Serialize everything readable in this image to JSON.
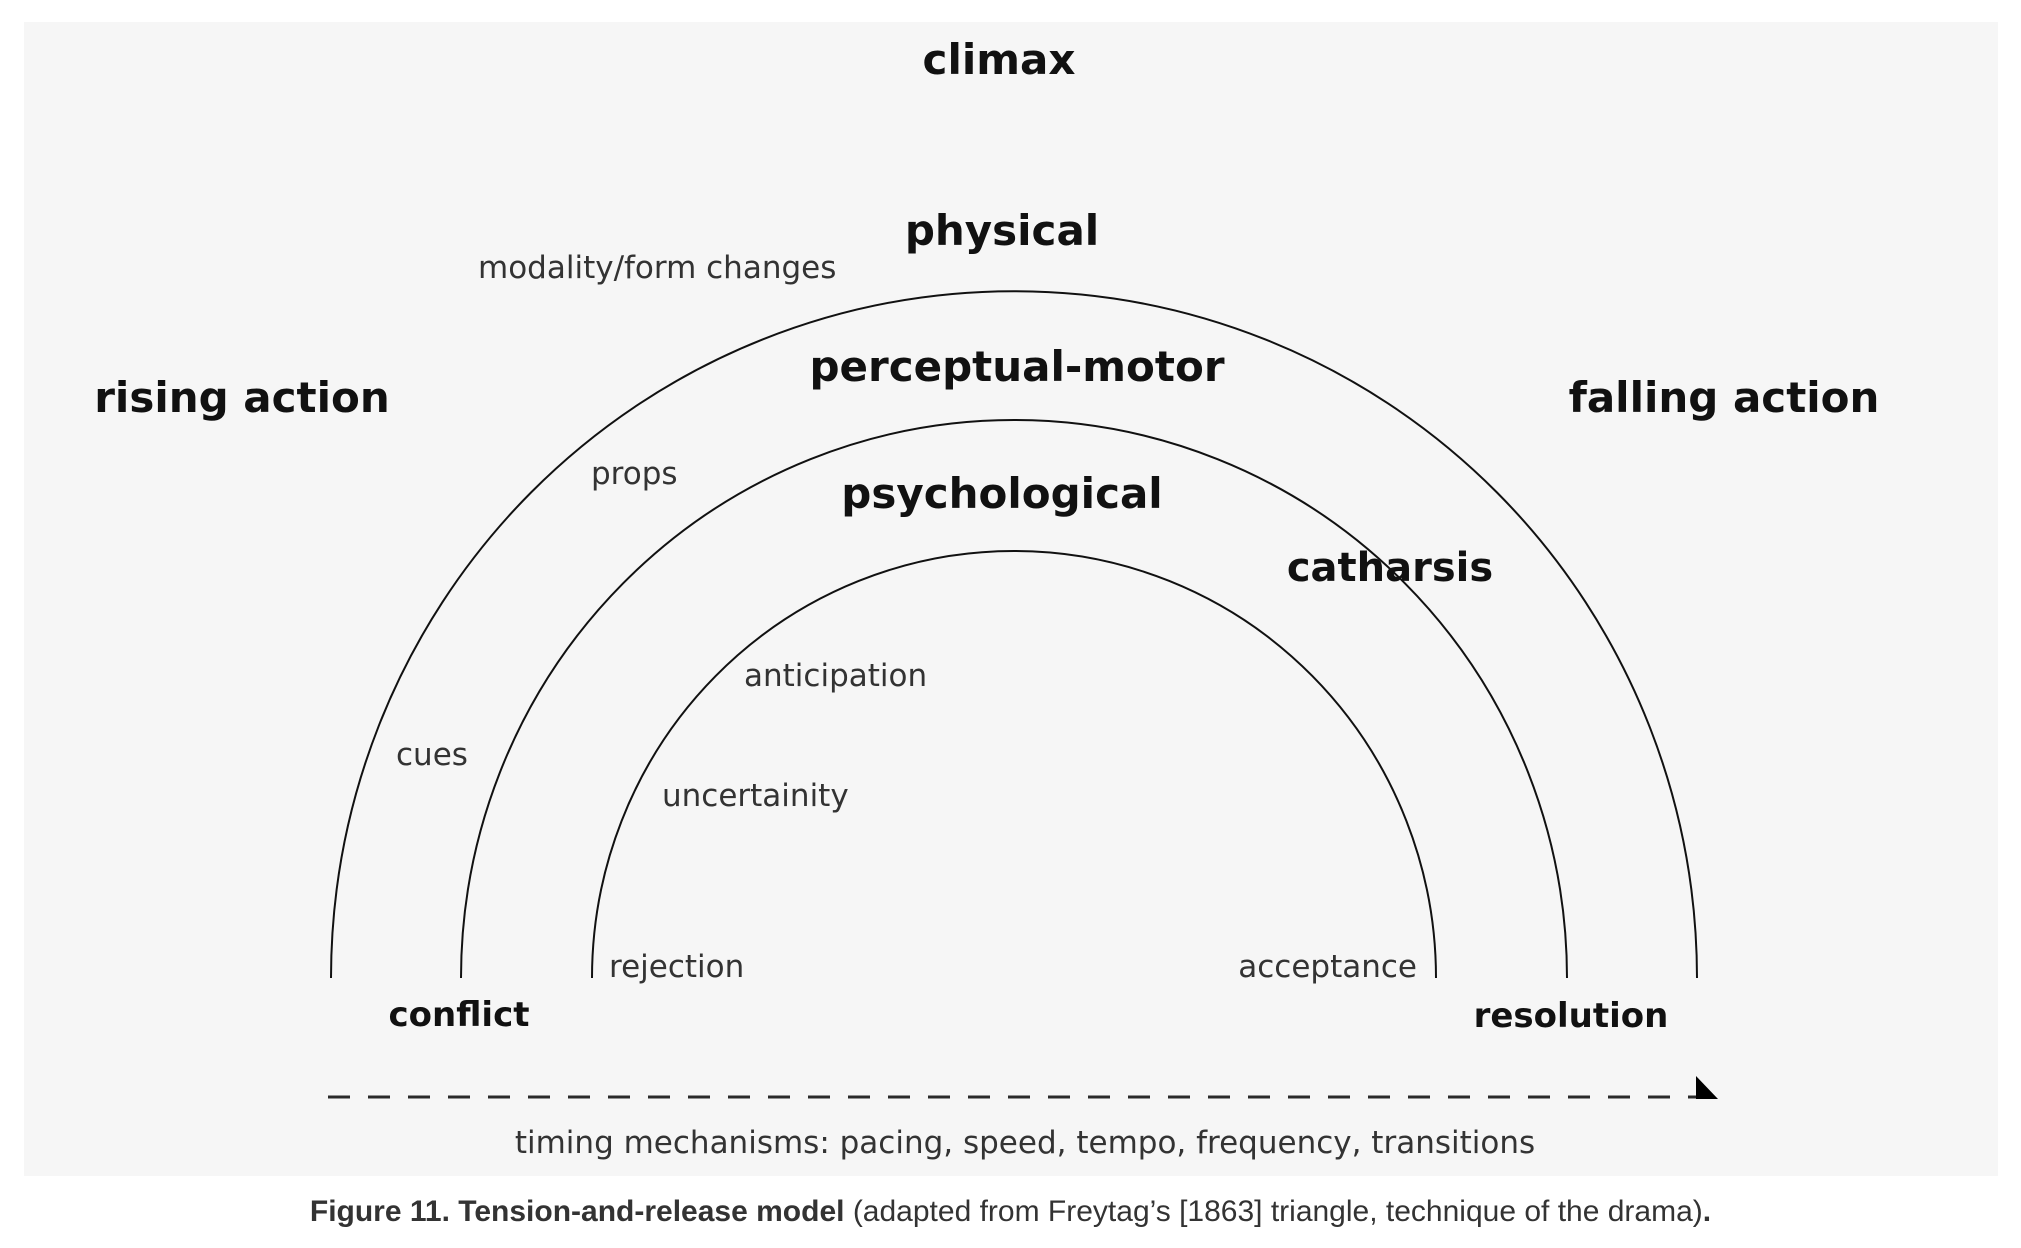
{
  "labels": {
    "climax": "climax",
    "physical": "physical",
    "perceptual_motor": "perceptual-motor",
    "psychological": "psychological",
    "rising_action": "rising action",
    "falling_action": "falling action",
    "catharsis": "catharsis",
    "conflict": "conflict",
    "resolution": "resolution",
    "modality": "modality/form changes",
    "props": "props",
    "cues": "cues",
    "anticipation": "anticipation",
    "uncertainity": "uncertainity",
    "rejection": "rejection",
    "acceptance": "acceptance",
    "timing": "timing mechanisms: pacing, speed, tempo, frequency, transitions"
  },
  "caption": {
    "bold": "Figure 11. Tension-and-release model",
    "rest": " (adapted from Freytag’s [1863] triangle, technique of the drama)",
    "end": "."
  },
  "colors": {
    "panel": "#f6f6f6",
    "line": "#111111",
    "text": "#333333"
  }
}
